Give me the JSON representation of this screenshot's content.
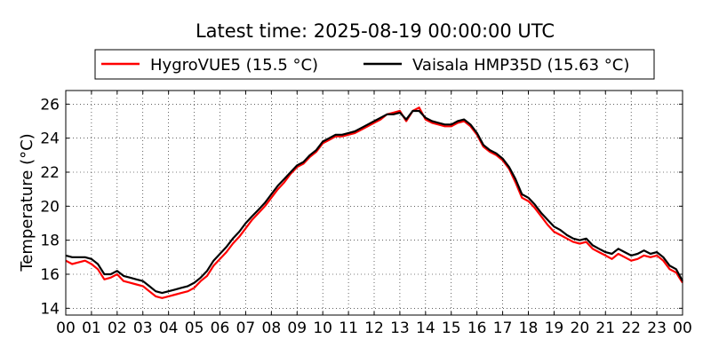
{
  "chart_data": {
    "type": "line",
    "title": "Latest time: 2025-08-19 00:00:00 UTC",
    "ylabel": "Temperature (°C)",
    "xlabel": "",
    "x_unit": "hour of day (UTC)",
    "xlim": [
      0,
      24
    ],
    "ylim": [
      13.6,
      26.8
    ],
    "x_ticks": [
      0,
      1,
      2,
      3,
      4,
      5,
      6,
      7,
      8,
      9,
      10,
      11,
      12,
      13,
      14,
      15,
      16,
      17,
      18,
      19,
      20,
      21,
      22,
      23,
      24
    ],
    "x_tick_labels": [
      "00",
      "01",
      "02",
      "03",
      "04",
      "05",
      "06",
      "07",
      "08",
      "09",
      "10",
      "11",
      "12",
      "13",
      "14",
      "15",
      "16",
      "17",
      "18",
      "19",
      "20",
      "21",
      "22",
      "23",
      "00"
    ],
    "y_ticks": [
      14,
      16,
      18,
      20,
      22,
      24,
      26
    ],
    "y_tick_labels": [
      "14",
      "16",
      "18",
      "20",
      "22",
      "24",
      "26"
    ],
    "grid": true,
    "grid_style": "dotted",
    "legend_position": "top-center, above plot",
    "series": [
      {
        "name": "HygroVUE5 (15.5 °C)",
        "color": "#ff0000",
        "x": [
          0,
          0.25,
          0.5,
          0.75,
          1,
          1.25,
          1.5,
          1.75,
          2,
          2.25,
          2.5,
          2.75,
          3,
          3.25,
          3.5,
          3.75,
          4,
          4.25,
          4.5,
          4.75,
          5,
          5.25,
          5.5,
          5.75,
          6,
          6.25,
          6.5,
          6.75,
          7,
          7.25,
          7.5,
          7.75,
          8,
          8.25,
          8.5,
          8.75,
          9,
          9.25,
          9.5,
          9.75,
          10,
          10.25,
          10.5,
          10.75,
          11,
          11.25,
          11.5,
          11.75,
          12,
          12.25,
          12.5,
          12.75,
          13,
          13.25,
          13.5,
          13.75,
          14,
          14.25,
          14.5,
          14.75,
          15,
          15.25,
          15.5,
          15.75,
          16,
          16.25,
          16.5,
          16.75,
          17,
          17.25,
          17.5,
          17.75,
          18,
          18.25,
          18.5,
          18.75,
          19,
          19.25,
          19.5,
          19.75,
          20,
          20.25,
          20.5,
          20.75,
          21,
          21.25,
          21.5,
          21.75,
          22,
          22.25,
          22.5,
          22.75,
          23,
          23.25,
          23.5,
          23.75,
          24
        ],
        "values": [
          16.8,
          16.6,
          16.7,
          16.8,
          16.6,
          16.3,
          15.7,
          15.8,
          16.0,
          15.6,
          15.5,
          15.4,
          15.3,
          15.0,
          14.7,
          14.6,
          14.7,
          14.8,
          14.9,
          15.0,
          15.2,
          15.6,
          15.9,
          16.5,
          16.9,
          17.3,
          17.8,
          18.2,
          18.7,
          19.2,
          19.6,
          20.0,
          20.5,
          21.0,
          21.4,
          21.9,
          22.3,
          22.5,
          22.9,
          23.2,
          23.7,
          23.9,
          24.1,
          24.1,
          24.2,
          24.3,
          24.5,
          24.7,
          24.9,
          25.1,
          25.4,
          25.5,
          25.6,
          25.0,
          25.6,
          25.8,
          25.1,
          24.9,
          24.8,
          24.7,
          24.7,
          24.9,
          25.0,
          24.7,
          24.2,
          23.5,
          23.2,
          23.0,
          22.7,
          22.2,
          21.4,
          20.5,
          20.3,
          19.9,
          19.4,
          18.9,
          18.5,
          18.3,
          18.1,
          17.9,
          17.8,
          17.9,
          17.5,
          17.3,
          17.1,
          16.9,
          17.2,
          17.0,
          16.8,
          16.9,
          17.1,
          17.0,
          17.1,
          16.8,
          16.3,
          16.1,
          15.5
        ]
      },
      {
        "name": "Vaisala HMP35D (15.63 °C)",
        "color": "#000000",
        "x": [
          0,
          0.25,
          0.5,
          0.75,
          1,
          1.25,
          1.5,
          1.75,
          2,
          2.25,
          2.5,
          2.75,
          3,
          3.25,
          3.5,
          3.75,
          4,
          4.25,
          4.5,
          4.75,
          5,
          5.25,
          5.5,
          5.75,
          6,
          6.25,
          6.5,
          6.75,
          7,
          7.25,
          7.5,
          7.75,
          8,
          8.25,
          8.5,
          8.75,
          9,
          9.25,
          9.5,
          9.75,
          10,
          10.25,
          10.5,
          10.75,
          11,
          11.25,
          11.5,
          11.75,
          12,
          12.25,
          12.5,
          12.75,
          13,
          13.25,
          13.5,
          13.75,
          14,
          14.25,
          14.5,
          14.75,
          15,
          15.25,
          15.5,
          15.75,
          16,
          16.25,
          16.5,
          16.75,
          17,
          17.25,
          17.5,
          17.75,
          18,
          18.25,
          18.5,
          18.75,
          19,
          19.25,
          19.5,
          19.75,
          20,
          20.25,
          20.5,
          20.75,
          21,
          21.25,
          21.5,
          21.75,
          22,
          22.25,
          22.5,
          22.75,
          23,
          23.25,
          23.5,
          23.75,
          24
        ],
        "values": [
          17.1,
          17.0,
          17.0,
          17.0,
          16.9,
          16.6,
          16.0,
          16.0,
          16.2,
          15.9,
          15.8,
          15.7,
          15.6,
          15.3,
          15.0,
          14.9,
          15.0,
          15.1,
          15.2,
          15.3,
          15.5,
          15.8,
          16.2,
          16.8,
          17.2,
          17.6,
          18.1,
          18.5,
          19.0,
          19.4,
          19.8,
          20.2,
          20.7,
          21.2,
          21.6,
          22.0,
          22.4,
          22.6,
          23.0,
          23.3,
          23.8,
          24.0,
          24.2,
          24.2,
          24.3,
          24.4,
          24.6,
          24.8,
          25.0,
          25.2,
          25.4,
          25.4,
          25.5,
          25.1,
          25.6,
          25.6,
          25.2,
          25.0,
          24.9,
          24.8,
          24.8,
          25.0,
          25.1,
          24.8,
          24.3,
          23.6,
          23.3,
          23.1,
          22.8,
          22.3,
          21.6,
          20.7,
          20.5,
          20.1,
          19.6,
          19.2,
          18.8,
          18.6,
          18.3,
          18.1,
          18.0,
          18.1,
          17.7,
          17.5,
          17.3,
          17.2,
          17.5,
          17.3,
          17.1,
          17.2,
          17.4,
          17.2,
          17.3,
          17.0,
          16.5,
          16.3,
          15.6
        ]
      }
    ]
  }
}
